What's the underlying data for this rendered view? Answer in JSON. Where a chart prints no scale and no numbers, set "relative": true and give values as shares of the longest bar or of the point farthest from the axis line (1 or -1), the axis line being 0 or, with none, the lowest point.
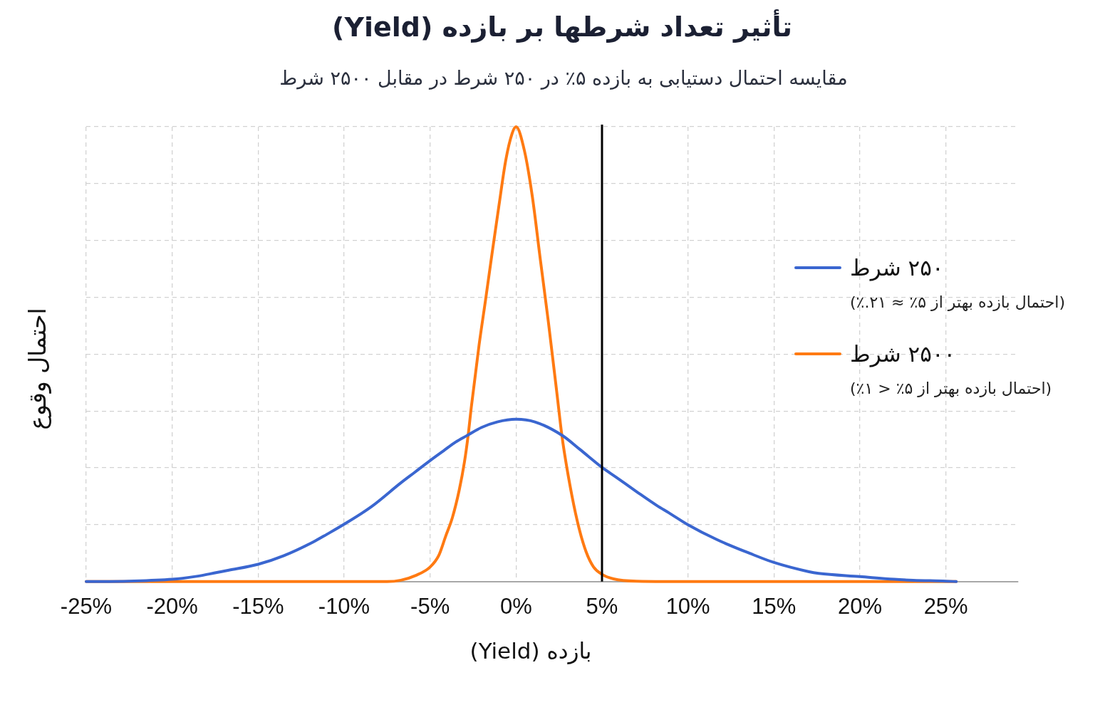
{
  "chart_data": {
    "type": "line",
    "title": "تأثیر تعداد شرطها بر بازده (Yield)",
    "subtitle": "مقایسه احتمال دستیابی به بازده ۵٪ در ۲۵۰ شرط در مقابل ۲۵۰۰ شرط",
    "xlabel": "بازده (Yield)",
    "ylabel": "احتمال وقوع",
    "relative": true,
    "grid": true,
    "legend": "right",
    "xlim": [
      -25,
      29.2
    ],
    "xticks": [
      {
        "value": -25,
        "label": "-25%"
      },
      {
        "value": -20,
        "label": "-20%"
      },
      {
        "value": -15,
        "label": "-15%"
      },
      {
        "value": -10,
        "label": "-10%"
      },
      {
        "value": -5,
        "label": "-5%"
      },
      {
        "value": 0,
        "label": "0%"
      },
      {
        "value": 5,
        "label": "5%"
      },
      {
        "value": 10,
        "label": "10%"
      },
      {
        "value": 15,
        "label": "15%"
      },
      {
        "value": 20,
        "label": "20%"
      },
      {
        "value": 25,
        "label": "25%"
      }
    ],
    "series": [
      {
        "name": "۲۵۰ شرط",
        "color": "#3a66d0",
        "x": [
          -25,
          -22.5,
          -20,
          -18.5,
          -17.4,
          -16.7,
          -15,
          -13.5,
          -11.8,
          -11,
          -10,
          -8.4,
          -6.7,
          -5.9,
          -5,
          -4.2,
          -3.5,
          -2.9,
          -2,
          -1.1,
          0,
          1.1,
          2.7,
          3.7,
          5,
          5.8,
          7,
          8.2,
          8.9,
          10,
          11.7,
          13.6,
          15,
          17,
          17.6,
          20,
          22,
          23.1,
          25,
          25.6
        ],
        "values": [
          0,
          0.001,
          0.005,
          0.012,
          0.02,
          0.025,
          0.038,
          0.057,
          0.087,
          0.104,
          0.126,
          0.165,
          0.217,
          0.24,
          0.266,
          0.288,
          0.307,
          0.32,
          0.339,
          0.351,
          0.357,
          0.351,
          0.321,
          0.291,
          0.251,
          0.23,
          0.198,
          0.167,
          0.151,
          0.125,
          0.092,
          0.062,
          0.042,
          0.022,
          0.018,
          0.011,
          0.005,
          0.003,
          0.001,
          0
        ]
      },
      {
        "name": "۲۵۰۰ شرط",
        "color": "#ff7a12",
        "x": [
          -25,
          -20,
          -15,
          -10,
          -7.5,
          -6.7,
          -5.8,
          -5,
          -4.5,
          -4.1,
          -3.7,
          -3.3,
          -3,
          -2.8,
          -2.6,
          -2.15,
          -1.77,
          -1.4,
          -1,
          -0.6,
          -0.23,
          0,
          0.49,
          0.95,
          1.41,
          1.88,
          2.39,
          2.65,
          2.81,
          3.24,
          3.66,
          4.08,
          4.51,
          5,
          5.67,
          7,
          10.7,
          15,
          20,
          25.6
        ],
        "values": [
          0,
          0,
          0,
          0,
          0,
          0.003,
          0.014,
          0.032,
          0.057,
          0.099,
          0.141,
          0.202,
          0.263,
          0.317,
          0.384,
          0.52,
          0.62,
          0.72,
          0.825,
          0.926,
          0.985,
          1,
          0.947,
          0.846,
          0.709,
          0.571,
          0.41,
          0.326,
          0.284,
          0.191,
          0.118,
          0.065,
          0.032,
          0.016,
          0.006,
          0.001,
          0,
          0,
          0,
          0
        ]
      }
    ],
    "ref_lines": [
      {
        "axis": "x",
        "value": 5,
        "color": "#000000"
      }
    ],
    "annotations": [
      "(احتمال بازده بهتر از ۵٪ ≈ ۲۱.٪)",
      "(احتمال بازده بهتر از ۵٪ < ۱٪)"
    ]
  }
}
